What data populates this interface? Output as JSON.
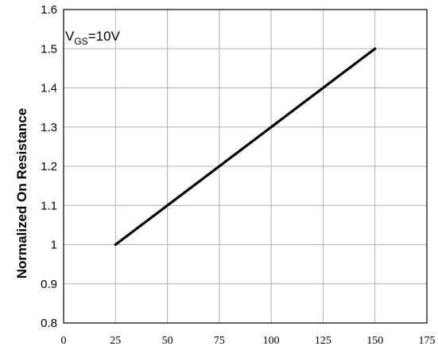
{
  "chart_data": {
    "type": "line",
    "ylabel": "Normalized On Resistance",
    "xlabel": "",
    "xlim": [
      0,
      175
    ],
    "ylim": [
      0.8,
      1.6
    ],
    "x_ticks": [
      "0",
      "25",
      "50",
      "75",
      "100",
      "125",
      "150",
      "175"
    ],
    "y_ticks": [
      "0.8",
      "0.9",
      "1",
      "1.1",
      "1.2",
      "1.3",
      "1.4",
      "1.5",
      "1.6"
    ],
    "grid": true,
    "annotation": {
      "main": "V",
      "sub": "GS",
      "rest": "=10V"
    },
    "series": [
      {
        "x": [
          25,
          150
        ],
        "values": [
          1.0,
          1.5
        ],
        "color": "#000000"
      }
    ]
  }
}
